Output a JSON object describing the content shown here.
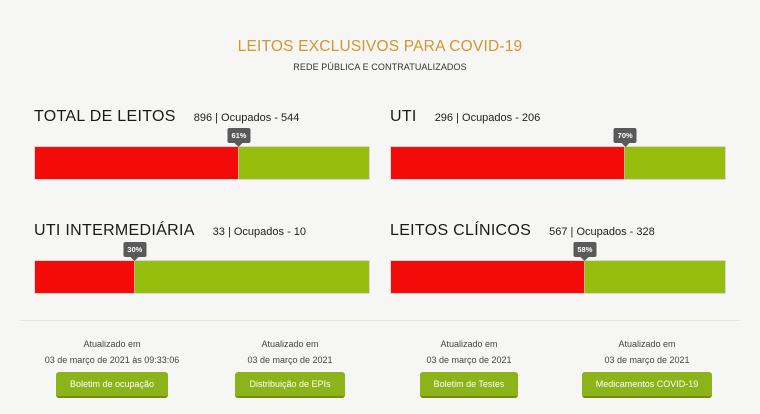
{
  "header": {
    "title": "LEITOS EXCLUSIVOS PARA COVID-19",
    "subtitle": "REDE PÚBLICA E CONTRATUALIZADOS"
  },
  "panels": [
    {
      "label": "TOTAL DE LEITOS",
      "stats": "896 | Ocupados - 544",
      "percent_label": "61%",
      "percent": 61
    },
    {
      "label": "UTI",
      "stats": "296 | Ocupados - 206",
      "percent_label": "70%",
      "percent": 70
    },
    {
      "label": "UTI INTERMEDIÁRIA",
      "stats": "33 | Ocupados - 10",
      "percent_label": "30%",
      "percent": 30
    },
    {
      "label": "LEITOS CLÍNICOS",
      "stats": "567 | Ocupados - 328",
      "percent_label": "58%",
      "percent": 58
    }
  ],
  "colors": {
    "occupied": "#f50a0a",
    "free": "#97be0d",
    "title": "#d4962e",
    "button": "#8db31a"
  },
  "footer": [
    {
      "updated_label": "Atualizado em",
      "date": "03 de março de 2021 às 09:33:06",
      "button": "Boletim de ocupação"
    },
    {
      "updated_label": "Atualizado em",
      "date": "03 de março de 2021",
      "button": "Distribuição de EPIs"
    },
    {
      "updated_label": "Atualizado em",
      "date": "03 de março de 2021",
      "button": "Boletim de Testes"
    },
    {
      "updated_label": "Atualizado em",
      "date": "03 de março de 2021",
      "button": "Medicamentos COVID-19"
    }
  ]
}
